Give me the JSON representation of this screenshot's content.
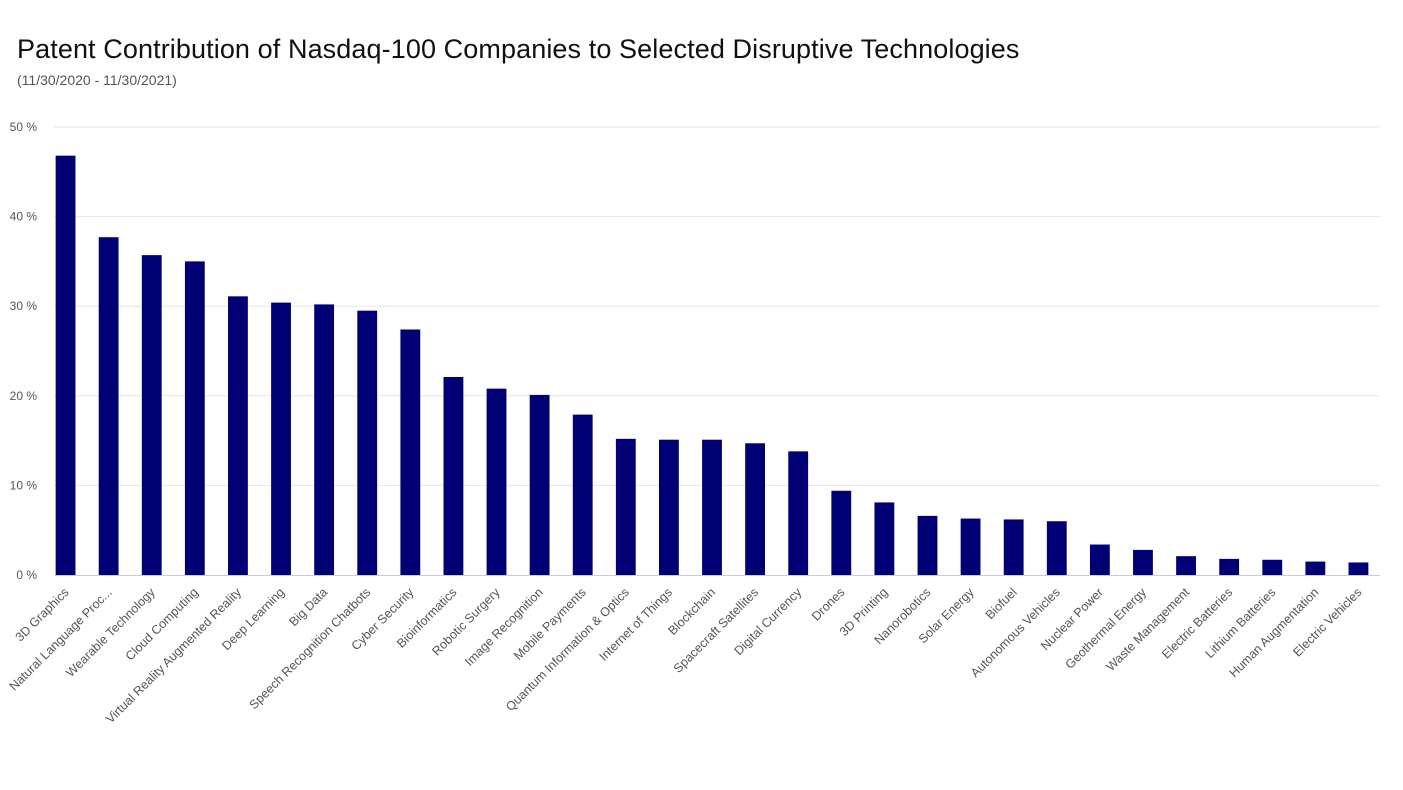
{
  "chart_data": {
    "type": "bar",
    "title": "Patent Contribution of Nasdaq-100 Companies to Selected Disruptive Technologies",
    "subtitle": "(11/30/2020 - 11/30/2021)",
    "xlabel": "",
    "ylabel": "",
    "ylim": [
      0,
      50
    ],
    "yticks": [
      0,
      10,
      20,
      30,
      40,
      50
    ],
    "ytick_labels": [
      "0 %",
      "10 %",
      "20 %",
      "30 %",
      "40 %",
      "50 %"
    ],
    "grid": true,
    "legend": "none",
    "bar_color": "#000074",
    "categories": [
      "3D Graphics",
      "Natural Language Proc...",
      "Wearable Technology",
      "Cloud Computing",
      "Virtual Reality Augmented Reality",
      "Deep Learning",
      "Big Data",
      "Speech Recognition Chatbots",
      "Cyber Security",
      "Bioinformatics",
      "Robotic Surgery",
      "Image Recognition",
      "Mobile Payments",
      "Quantum Information & Optics",
      "Internet of Things",
      "Blockchain",
      "Spacecraft Satellites",
      "Digital Currency",
      "Drones",
      "3D Printing",
      "Nanorobotics",
      "Solar Energy",
      "Biofuel",
      "Autonomous Vehicles",
      "Nuclear Power",
      "Geothermal Energy",
      "Waste Management",
      "Electric Batteries",
      "Lithium Batteries",
      "Human Augmentation",
      "Electric Vehicles"
    ],
    "values": [
      46.8,
      37.7,
      35.7,
      35.0,
      31.1,
      30.4,
      30.2,
      29.5,
      27.4,
      22.1,
      20.8,
      20.1,
      17.9,
      15.2,
      15.1,
      15.1,
      14.7,
      13.8,
      9.4,
      8.1,
      6.6,
      6.3,
      6.2,
      6.0,
      3.4,
      2.8,
      2.1,
      1.8,
      1.7,
      1.5,
      1.4
    ]
  }
}
